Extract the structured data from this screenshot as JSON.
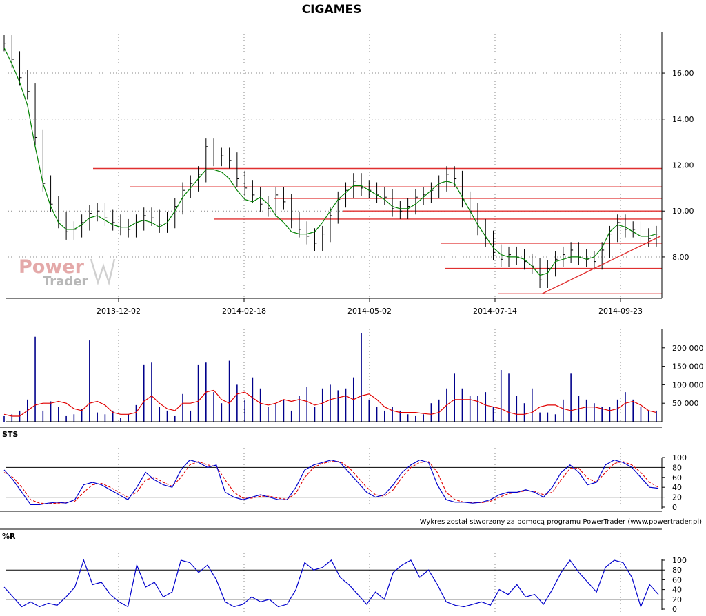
{
  "title": "CIGAMES",
  "credit": "Wykres został stworzony za pomocą programu PowerTrader (www.powertrader.pl)",
  "watermark": {
    "line1": "Power",
    "line2": "Trader"
  },
  "colors": {
    "bars": "#000000",
    "moving_average": "#008000",
    "support_resistance": "#e03030",
    "volume_bars": "#00008b",
    "volume_average": "#e00000",
    "oscillator": "#0000cc",
    "oscillator_signal": "#e00000",
    "grid": "#888888"
  },
  "chart_data": [
    {
      "type": "ohlc",
      "name": "price",
      "y_ticks": [
        "8,00",
        "10,00",
        "12,00",
        "14,00",
        "16,00"
      ],
      "y_tick_values": [
        8,
        10,
        12,
        14,
        16
      ],
      "ylim": [
        6.2,
        17.8
      ],
      "x_tick_labels": [
        "2013-12-02",
        "2014-02-18",
        "2014-05-02",
        "2014-07-14",
        "2014-09-23"
      ],
      "series_close_approx": [
        17.3,
        16.6,
        15.8,
        15.2,
        13.2,
        11.2,
        10.3,
        9.6,
        9.1,
        9.2,
        9.5,
        9.9,
        10.0,
        9.7,
        9.5,
        9.3,
        9.2,
        9.5,
        9.8,
        9.7,
        9.4,
        9.6,
        10.2,
        10.9,
        11.2,
        11.6,
        12.8,
        12.3,
        12.4,
        12.2,
        11.4,
        11.0,
        10.7,
        10.3,
        10.1,
        10.7,
        10.4,
        9.6,
        9.2,
        8.9,
        8.6,
        9.0,
        9.8,
        10.5,
        10.9,
        11.3,
        11.0,
        10.9,
        10.7,
        10.6,
        10.1,
        10.0,
        10.2,
        10.6,
        10.7,
        10.9,
        11.2,
        11.6,
        11.4,
        10.5,
        10.0,
        9.3,
        8.8,
        8.2,
        7.9,
        8.1,
        8.0,
        7.8,
        7.6,
        7.0,
        7.5,
        7.9,
        8.1,
        8.3,
        8.0,
        7.9,
        7.8,
        8.3,
        9.0,
        9.5,
        9.2,
        9.2,
        8.9,
        8.8,
        9.0
      ],
      "moving_average_approx": [
        17.1,
        16.4,
        15.6,
        14.6,
        12.8,
        11.2,
        10.2,
        9.5,
        9.2,
        9.2,
        9.4,
        9.7,
        9.8,
        9.6,
        9.4,
        9.3,
        9.3,
        9.5,
        9.6,
        9.5,
        9.3,
        9.5,
        10.0,
        10.6,
        11.0,
        11.4,
        11.8,
        11.8,
        11.7,
        11.4,
        10.9,
        10.5,
        10.4,
        10.6,
        10.3,
        9.8,
        9.5,
        9.1,
        9.0,
        9.0,
        9.1,
        9.5,
        10.0,
        10.5,
        10.8,
        11.1,
        11.1,
        10.9,
        10.7,
        10.5,
        10.2,
        10.1,
        10.1,
        10.3,
        10.6,
        10.9,
        11.2,
        11.3,
        11.2,
        10.6,
        10.0,
        9.4,
        8.9,
        8.4,
        8.1,
        8.0,
        8.0,
        7.9,
        7.6,
        7.2,
        7.3,
        7.8,
        7.9,
        8.0,
        8.0,
        7.9,
        8.0,
        8.4,
        9.1,
        9.4,
        9.3,
        9.1,
        8.9,
        8.9,
        9.0
      ],
      "horizontal_levels": [
        11.85,
        11.05,
        10.55,
        10.0,
        9.65,
        8.6,
        7.5,
        6.4
      ],
      "trend_line": {
        "from": 6.4,
        "to": 8.9
      }
    },
    {
      "type": "bar",
      "name": "volume",
      "y_ticks": [
        "50 000",
        "100 000",
        "150 000",
        "200 000"
      ],
      "y_tick_values": [
        50000,
        100000,
        150000,
        200000
      ],
      "ylim": [
        0,
        250000
      ],
      "values_approx": [
        15000,
        20000,
        30000,
        60000,
        230000,
        30000,
        55000,
        40000,
        15000,
        20000,
        35000,
        220000,
        25000,
        20000,
        30000,
        10000,
        20000,
        45000,
        155000,
        160000,
        40000,
        30000,
        15000,
        75000,
        30000,
        155000,
        160000,
        80000,
        50000,
        165000,
        100000,
        60000,
        120000,
        90000,
        40000,
        50000,
        60000,
        30000,
        70000,
        95000,
        40000,
        90000,
        100000,
        85000,
        90000,
        120000,
        240000,
        60000,
        40000,
        30000,
        40000,
        30000,
        20000,
        15000,
        20000,
        50000,
        60000,
        90000,
        130000,
        90000,
        70000,
        70000,
        80000,
        40000,
        140000,
        130000,
        70000,
        50000,
        90000,
        25000,
        25000,
        20000,
        60000,
        130000,
        70000,
        60000,
        50000,
        40000,
        40000,
        60000,
        80000,
        60000,
        40000,
        30000,
        30000
      ],
      "average_approx": [
        20000,
        15000,
        15000,
        30000,
        45000,
        50000,
        50000,
        55000,
        50000,
        35000,
        30000,
        50000,
        55000,
        45000,
        25000,
        20000,
        20000,
        25000,
        55000,
        70000,
        50000,
        35000,
        30000,
        50000,
        50000,
        55000,
        80000,
        85000,
        60000,
        50000,
        75000,
        80000,
        65000,
        50000,
        45000,
        50000,
        60000,
        55000,
        60000,
        55000,
        45000,
        50000,
        60000,
        65000,
        70000,
        60000,
        70000,
        75000,
        60000,
        40000,
        30000,
        25000,
        25000,
        25000,
        22000,
        20000,
        25000,
        45000,
        60000,
        60000,
        60000,
        55000,
        45000,
        40000,
        35000,
        25000,
        20000,
        20000,
        25000,
        40000,
        45000,
        45000,
        35000,
        30000,
        35000,
        40000,
        40000,
        35000,
        30000,
        35000,
        50000,
        55000,
        45000,
        30000,
        25000
      ]
    },
    {
      "type": "line",
      "name": "STS",
      "label": "STS",
      "y_ticks": [
        "0",
        "20",
        "40",
        "60",
        "80",
        "100"
      ],
      "y_tick_values": [
        0,
        20,
        40,
        60,
        80,
        100
      ],
      "ylim": [
        0,
        100
      ],
      "reference_levels": [
        20,
        80
      ],
      "values_approx": [
        75,
        55,
        30,
        5,
        5,
        8,
        10,
        8,
        15,
        45,
        50,
        45,
        35,
        25,
        15,
        40,
        70,
        55,
        45,
        40,
        75,
        95,
        90,
        80,
        85,
        30,
        20,
        15,
        20,
        25,
        20,
        15,
        15,
        40,
        75,
        85,
        90,
        95,
        90,
        70,
        50,
        30,
        20,
        25,
        45,
        70,
        85,
        95,
        90,
        45,
        15,
        10,
        10,
        8,
        10,
        15,
        25,
        30,
        30,
        35,
        30,
        20,
        40,
        70,
        85,
        70,
        45,
        50,
        85,
        95,
        90,
        80,
        60,
        40,
        38
      ],
      "signal_approx": [
        70,
        60,
        40,
        15,
        8,
        7,
        8,
        9,
        12,
        30,
        45,
        48,
        40,
        30,
        20,
        30,
        55,
        60,
        50,
        42,
        60,
        85,
        92,
        85,
        82,
        55,
        30,
        18,
        18,
        22,
        22,
        18,
        16,
        28,
        60,
        80,
        88,
        92,
        92,
        80,
        60,
        40,
        25,
        22,
        35,
        60,
        80,
        90,
        92,
        70,
        30,
        15,
        10,
        9,
        9,
        12,
        20,
        27,
        30,
        33,
        32,
        25,
        30,
        55,
        78,
        78,
        58,
        50,
        70,
        88,
        92,
        85,
        70,
        50,
        40
      ]
    },
    {
      "type": "line",
      "name": "%R",
      "label": "%R",
      "y_ticks": [
        "0",
        "20",
        "40",
        "60",
        "80",
        "100"
      ],
      "y_tick_values": [
        0,
        20,
        40,
        60,
        80,
        100
      ],
      "ylim": [
        0,
        100
      ],
      "reference_levels": [
        20,
        80
      ],
      "values_approx": [
        45,
        25,
        5,
        15,
        5,
        12,
        8,
        25,
        45,
        100,
        50,
        55,
        30,
        15,
        5,
        90,
        45,
        55,
        25,
        35,
        100,
        95,
        75,
        90,
        60,
        15,
        5,
        10,
        25,
        15,
        20,
        5,
        10,
        40,
        95,
        80,
        85,
        100,
        65,
        50,
        30,
        10,
        35,
        20,
        75,
        90,
        100,
        65,
        80,
        50,
        15,
        8,
        5,
        10,
        15,
        8,
        40,
        30,
        50,
        25,
        30,
        10,
        40,
        75,
        100,
        75,
        55,
        35,
        85,
        100,
        95,
        65,
        5,
        50,
        30
      ]
    }
  ],
  "panels": {
    "sts_label": "STS",
    "willr_label": "%R"
  }
}
